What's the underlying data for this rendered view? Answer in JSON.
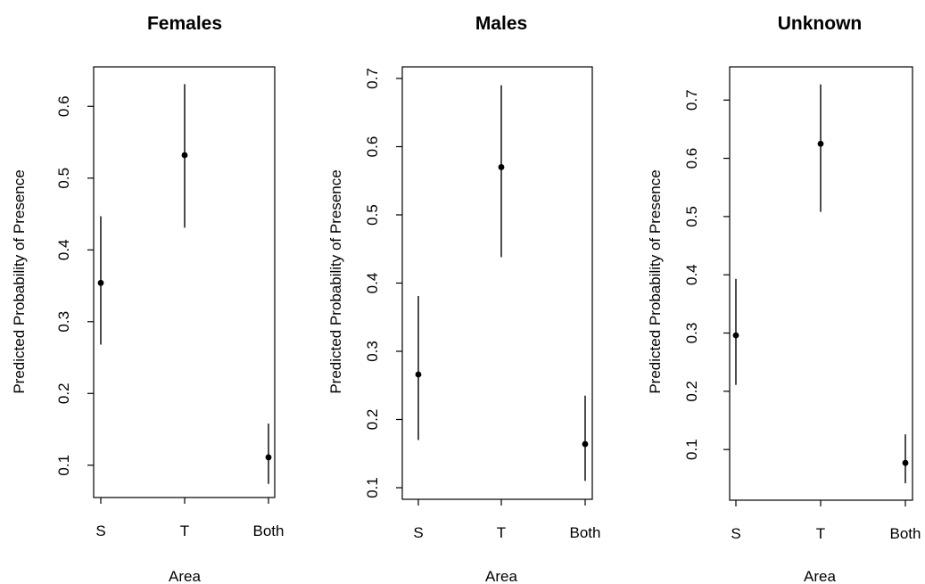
{
  "colors": {
    "background": "#ffffff",
    "ink": "#000000"
  },
  "chart_data": [
    {
      "type": "scatter",
      "title": "Females",
      "xlabel": "Area",
      "ylabel": "Predicted Probability of Presence",
      "categories": [
        "S",
        "T",
        "Both"
      ],
      "yticks": [
        "0.1",
        "0.2",
        "0.3",
        "0.4",
        "0.5",
        "0.6"
      ],
      "ylim": [
        0.055,
        0.655
      ],
      "grid": false,
      "series": [
        {
          "values": [
            0.354,
            0.532,
            0.111
          ],
          "lower": [
            0.268,
            0.431,
            0.074
          ],
          "upper": [
            0.447,
            0.631,
            0.158
          ]
        }
      ]
    },
    {
      "type": "scatter",
      "title": "Males",
      "xlabel": "Area",
      "ylabel": "Predicted Probability of Presence",
      "categories": [
        "S",
        "T",
        "Both"
      ],
      "yticks": [
        "0.1",
        "0.2",
        "0.3",
        "0.4",
        "0.5",
        "0.6",
        "0.7"
      ],
      "ylim": [
        0.083,
        0.717
      ],
      "grid": false,
      "series": [
        {
          "values": [
            0.266,
            0.57,
            0.164
          ],
          "lower": [
            0.17,
            0.438,
            0.11
          ],
          "upper": [
            0.381,
            0.69,
            0.235
          ]
        }
      ]
    },
    {
      "type": "scatter",
      "title": "Unknown",
      "xlabel": "Area",
      "ylabel": "Predicted Probability of Presence",
      "categories": [
        "S",
        "T",
        "Both"
      ],
      "yticks": [
        "0.1",
        "0.2",
        "0.3",
        "0.4",
        "0.5",
        "0.6",
        "0.7"
      ],
      "ylim": [
        0.013,
        0.757
      ],
      "grid": false,
      "series": [
        {
          "values": [
            0.296,
            0.625,
            0.077
          ],
          "lower": [
            0.211,
            0.508,
            0.042
          ],
          "upper": [
            0.393,
            0.727,
            0.126
          ]
        }
      ]
    }
  ]
}
